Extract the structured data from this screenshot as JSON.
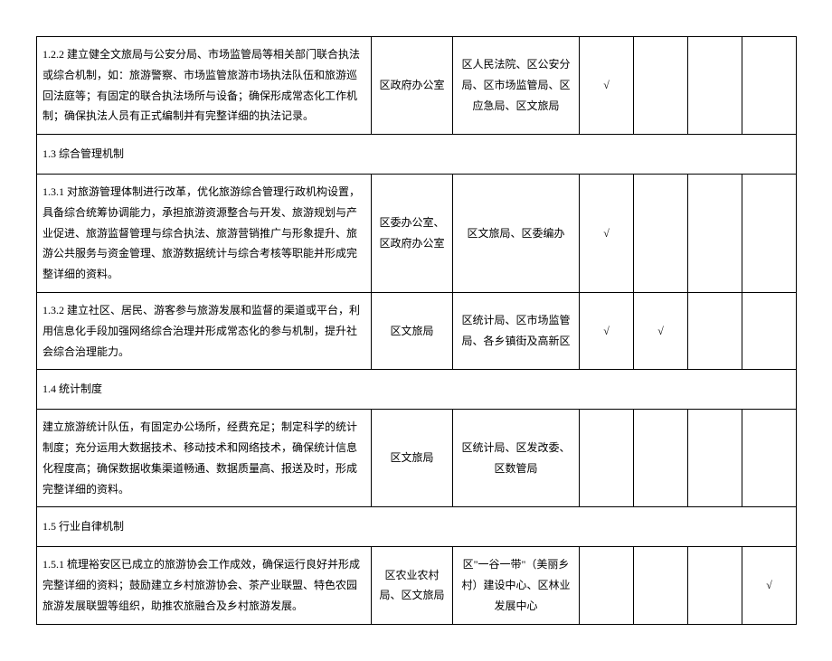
{
  "check_mark": "√",
  "rows": [
    {
      "type": "data",
      "desc": "1.2.2 建立健全文旅局与公安分局、市场监管局等相关部门联合执法或综合机制，如：旅游警察、市场监管旅游市场执法队伍和旅游巡回法庭等；有固定的联合执法场所与设备；确保形成常态化工作机制；确保执法人员有正式编制并有完整详细的执法记录。",
      "lead": "区政府办公室",
      "coop": "区人民法院、区公安分局、区市场监管局、区应急局、区文旅局",
      "checks": [
        "√",
        "",
        "",
        ""
      ]
    },
    {
      "type": "header",
      "desc": "1.3 综合管理机制"
    },
    {
      "type": "data",
      "desc": "1.3.1 对旅游管理体制进行改革，优化旅游综合管理行政机构设置，具备综合统筹协调能力，承担旅游资源整合与开发、旅游规划与产业促进、旅游监督管理与综合执法、旅游营销推广与形象提升、旅游公共服务与资金管理、旅游数据统计与综合考核等职能并形成完整详细的资料。",
      "lead": "区委办公室、区政府办公室",
      "coop": "区文旅局、区委编办",
      "checks": [
        "√",
        "",
        "",
        ""
      ]
    },
    {
      "type": "data",
      "desc": "1.3.2 建立社区、居民、游客参与旅游发展和监督的渠道或平台，利用信息化手段加强网络综合治理并形成常态化的参与机制，提升社会综合治理能力。",
      "lead": "区文旅局",
      "coop": "区统计局、区市场监管局、各乡镇街及高新区",
      "checks": [
        "√",
        "√",
        "",
        ""
      ]
    },
    {
      "type": "header",
      "desc": "1.4 统计制度"
    },
    {
      "type": "data",
      "desc": "建立旅游统计队伍，有固定办公场所，经费充足；制定科学的统计制度；充分运用大数据技术、移动技术和网络技术，确保统计信息化程度高；确保数据收集渠道畅通、数据质量高、报送及时，形成完整详细的资料。",
      "lead": "区文旅局",
      "coop": "区统计局、区发改委、区数管局",
      "checks": [
        "",
        "",
        "",
        ""
      ]
    },
    {
      "type": "header",
      "desc": "1.5 行业自律机制"
    },
    {
      "type": "data",
      "desc": "1.5.1 梳理裕安区已成立的旅游协会工作成效，确保运行良好并形成完整详细的资料；鼓励建立乡村旅游协会、茶产业联盟、特色农园旅游发展联盟等组织，助推农旅融合及乡村旅游发展。",
      "lead": "区农业农村局、区文旅局",
      "coop": "区\"一谷一带\"（美丽乡村）建设中心、区林业发展中心",
      "checks": [
        "",
        "",
        "",
        "√"
      ]
    }
  ]
}
